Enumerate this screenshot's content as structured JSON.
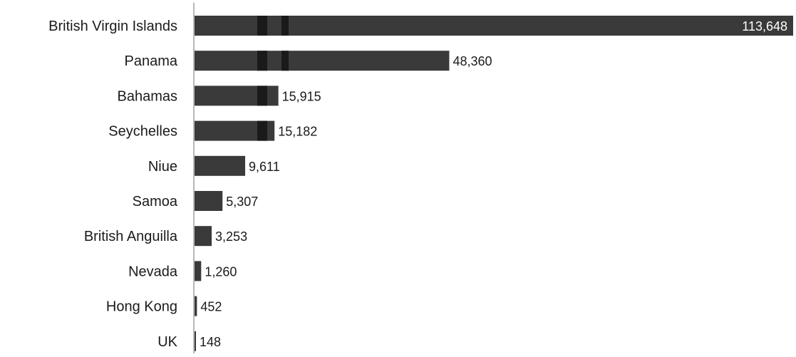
{
  "chart_data": {
    "type": "bar",
    "orientation": "horizontal",
    "categories": [
      "British Virgin Islands",
      "Panama",
      "Bahamas",
      "Seychelles",
      "Niue",
      "Samoa",
      "British Anguilla",
      "Nevada",
      "Hong Kong",
      "UK"
    ],
    "values": [
      113648,
      48360,
      15915,
      15182,
      9611,
      5307,
      3253,
      1260,
      452,
      148
    ],
    "value_labels": [
      "113,648",
      "48,360",
      "15,915",
      "15,182",
      "9,611",
      "5,307",
      "3,253",
      "1,260",
      "452",
      "148"
    ],
    "xlim": [
      0,
      113648
    ],
    "grid": false,
    "legend": "none",
    "colors": {
      "bar": "#3a3a3a",
      "bar_band": "#1a1a1a",
      "axis": "#b8b8b8",
      "label": "#1a1a1a",
      "inside_label": "#ffffff"
    }
  }
}
